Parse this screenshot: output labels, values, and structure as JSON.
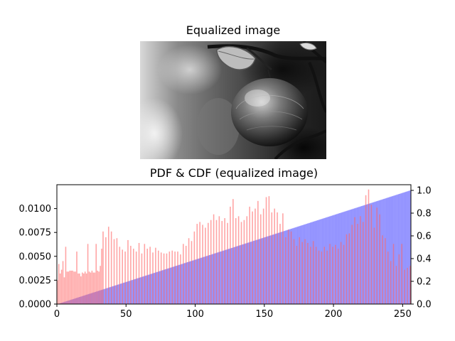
{
  "image_panel": {
    "title": "Equalized image",
    "image_description_icon": "grayscale-apple-on-branch-photo"
  },
  "chart_data": {
    "type": "bar",
    "title": "PDF & CDF (equalized image)",
    "xlabel": "",
    "ylabel": "",
    "xlim": [
      0,
      256
    ],
    "ylim_left": [
      0,
      0.0125
    ],
    "ylim_right": [
      0,
      1.05
    ],
    "x_ticks": [
      "0",
      "50",
      "100",
      "150",
      "200",
      "250"
    ],
    "x_tick_values": [
      0,
      50,
      100,
      150,
      200,
      250
    ],
    "y_left_ticks": [
      "0.0000",
      "0.0025",
      "0.0050",
      "0.0075",
      "0.0100"
    ],
    "y_left_tick_values": [
      0,
      0.0025,
      0.005,
      0.0075,
      0.01
    ],
    "y_right_ticks": [
      "0.0",
      "0.2",
      "0.4",
      "0.6",
      "0.8",
      "1.0"
    ],
    "y_right_tick_values": [
      0,
      0.2,
      0.4,
      0.6,
      0.8,
      1.0
    ],
    "grid": false,
    "legend": "none",
    "series": [
      {
        "axis": "left",
        "color": "#ff6666",
        "alpha": 0.6,
        "points": [
          [
            0,
            0.0025
          ],
          [
            1,
            0.0042
          ],
          [
            2,
            0.0032
          ],
          [
            3,
            0.0036
          ],
          [
            4,
            0.0045
          ],
          [
            5,
            0.0028
          ],
          [
            6,
            0.006
          ],
          [
            7,
            0.0034
          ],
          [
            8,
            0.0034
          ],
          [
            9,
            0.0035
          ],
          [
            10,
            0.0035
          ],
          [
            11,
            0.0035
          ],
          [
            12,
            0.0034
          ],
          [
            13,
            0.0034
          ],
          [
            14,
            0.0055
          ],
          [
            15,
            0.0032
          ],
          [
            16,
            0.0032
          ],
          [
            17,
            0.0029
          ],
          [
            18,
            0.0033
          ],
          [
            19,
            0.0032
          ],
          [
            20,
            0.0034
          ],
          [
            21,
            0.0032
          ],
          [
            22,
            0.0063
          ],
          [
            23,
            0.0034
          ],
          [
            24,
            0.0033
          ],
          [
            25,
            0.0035
          ],
          [
            26,
            0.0033
          ],
          [
            27,
            0.0033
          ],
          [
            28,
            0.0063
          ],
          [
            29,
            0.0035
          ],
          [
            30,
            0.0034
          ],
          [
            31,
            0.004
          ],
          [
            32,
            0.0058
          ],
          [
            33,
            0.0076
          ],
          [
            35,
            0.007
          ],
          [
            37,
            0.0081
          ],
          [
            39,
            0.0076
          ],
          [
            41,
            0.0068
          ],
          [
            43,
            0.0069
          ],
          [
            45,
            0.006
          ],
          [
            47,
            0.0057
          ],
          [
            49,
            0.0055
          ],
          [
            51,
            0.0067
          ],
          [
            53,
            0.0061
          ],
          [
            55,
            0.0058
          ],
          [
            57,
            0.0055
          ],
          [
            59,
            0.0064
          ],
          [
            61,
            0.0053
          ],
          [
            63,
            0.0063
          ],
          [
            65,
            0.0058
          ],
          [
            67,
            0.006
          ],
          [
            69,
            0.0054
          ],
          [
            71,
            0.0059
          ],
          [
            73,
            0.0056
          ],
          [
            75,
            0.0054
          ],
          [
            77,
            0.0053
          ],
          [
            79,
            0.0053
          ],
          [
            81,
            0.0055
          ],
          [
            83,
            0.0056
          ],
          [
            85,
            0.0055
          ],
          [
            87,
            0.0055
          ],
          [
            89,
            0.0052
          ],
          [
            91,
            0.0063
          ],
          [
            93,
            0.0061
          ],
          [
            95,
            0.0069
          ],
          [
            97,
            0.0066
          ],
          [
            99,
            0.0076
          ],
          [
            101,
            0.0084
          ],
          [
            103,
            0.0086
          ],
          [
            105,
            0.0083
          ],
          [
            107,
            0.008
          ],
          [
            109,
            0.0085
          ],
          [
            111,
            0.0088
          ],
          [
            113,
            0.0094
          ],
          [
            115,
            0.0088
          ],
          [
            117,
            0.0092
          ],
          [
            119,
            0.0087
          ],
          [
            121,
            0.009
          ],
          [
            123,
            0.0085
          ],
          [
            125,
            0.0102
          ],
          [
            127,
            0.011
          ],
          [
            129,
            0.009
          ],
          [
            131,
            0.0092
          ],
          [
            133,
            0.0086
          ],
          [
            135,
            0.0088
          ],
          [
            137,
            0.0092
          ],
          [
            139,
            0.0102
          ],
          [
            141,
            0.0097
          ],
          [
            143,
            0.01
          ],
          [
            145,
            0.0108
          ],
          [
            147,
            0.0094
          ],
          [
            149,
            0.01
          ],
          [
            151,
            0.0112
          ],
          [
            153,
            0.0113
          ],
          [
            155,
            0.0096
          ],
          [
            157,
            0.01
          ],
          [
            159,
            0.0096
          ],
          [
            161,
            0.0084
          ],
          [
            163,
            0.0095
          ],
          [
            165,
            0.007
          ],
          [
            167,
            0.0078
          ],
          [
            169,
            0.0076
          ],
          [
            171,
            0.0068
          ],
          [
            173,
            0.0061
          ],
          [
            175,
            0.007
          ],
          [
            177,
            0.0065
          ],
          [
            179,
            0.0068
          ],
          [
            181,
            0.0064
          ],
          [
            183,
            0.006
          ],
          [
            185,
            0.0066
          ],
          [
            187,
            0.006
          ],
          [
            189,
            0.0056
          ],
          [
            191,
            0.0055
          ],
          [
            193,
            0.006
          ],
          [
            195,
            0.0056
          ],
          [
            197,
            0.0063
          ],
          [
            199,
            0.006
          ],
          [
            201,
            0.0062
          ],
          [
            203,
            0.0058
          ],
          [
            205,
            0.0065
          ],
          [
            207,
            0.0062
          ],
          [
            209,
            0.0073
          ],
          [
            211,
            0.0074
          ],
          [
            213,
            0.0083
          ],
          [
            215,
            0.0091
          ],
          [
            217,
            0.0084
          ],
          [
            219,
            0.0092
          ],
          [
            221,
            0.0086
          ],
          [
            223,
            0.0114
          ],
          [
            225,
            0.012
          ],
          [
            227,
            0.0104
          ],
          [
            229,
            0.008
          ],
          [
            231,
            0.0101
          ],
          [
            233,
            0.0094
          ],
          [
            235,
            0.0072
          ],
          [
            237,
            0.0069
          ],
          [
            239,
            0.0055
          ],
          [
            241,
            0.0045
          ],
          [
            243,
            0.0063
          ],
          [
            245,
            0.004
          ],
          [
            247,
            0.0052
          ],
          [
            249,
            0.0063
          ],
          [
            251,
            0.0036
          ],
          [
            253,
            0.0038
          ],
          [
            255,
            0.004
          ]
        ]
      },
      {
        "axis": "right",
        "color": "#6666ff",
        "alpha": 0.65,
        "type": "cumulative-bars",
        "start": [
          0,
          0.0
        ],
        "end": [
          255,
          1.0
        ]
      }
    ]
  }
}
